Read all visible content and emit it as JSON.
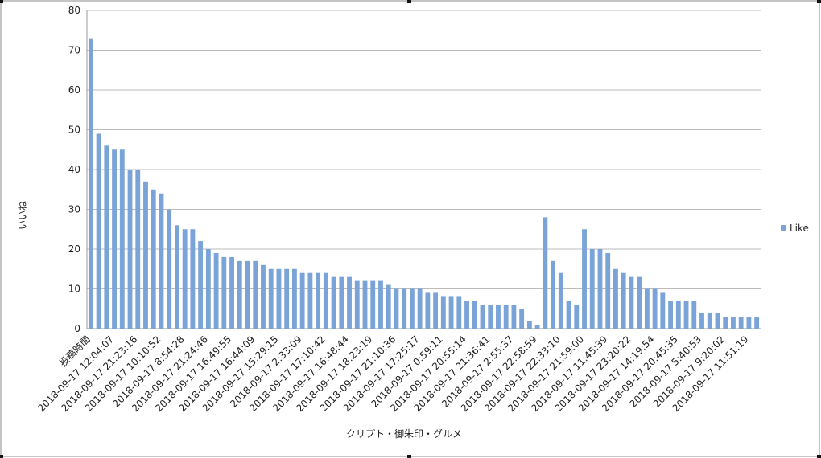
{
  "chart_data": {
    "type": "bar",
    "y_label": "いいね",
    "x_label": "クリプト・御朱印・グルメ",
    "categories": [
      "投稿時間",
      null,
      null,
      "2018-09-17 12:04:07",
      null,
      null,
      "2018-09-17 21:23:16",
      null,
      null,
      "2018-09-17 10:10:52",
      null,
      null,
      "2018-09-17 8:54:28",
      null,
      null,
      "2018-09-17 21:24:46",
      null,
      null,
      "2018-09-17 16:49:55",
      null,
      null,
      "2018-09-17 16:44:09",
      null,
      null,
      "2018-09-17 15:29:15",
      null,
      null,
      "2018-09-17 2:33:09",
      null,
      null,
      "2018-09-17 17:10:42",
      null,
      null,
      "2018-09-17 16:48:44",
      null,
      null,
      "2018-09-17 18:23:19",
      null,
      null,
      "2018-09-17 21:10:36",
      null,
      null,
      "2018-09-17 17:25:17",
      null,
      null,
      "2018-09-17 0:59:11",
      null,
      null,
      "2018-09-17 20:55:14",
      null,
      null,
      "2018-09-17 21:36:41",
      null,
      null,
      "2018-09-17 2:55:37",
      null,
      null,
      "2018-09-17 22:58:59",
      null,
      null,
      "2018-09-17 22:33:10",
      null,
      null,
      "2018-09-17 21:59:00",
      null,
      null,
      "2018-09-17 11:45:39",
      null,
      null,
      "2018-09-17 23:20:22",
      null,
      null,
      "2018-09-17 14:19:54",
      null,
      null,
      "2018-09-17 20:45:35",
      null,
      null,
      "2018-09-17 5:40:53",
      null,
      null,
      "2018-09-17 9:20:02",
      null,
      null,
      "2018-09-17 11:51:19",
      null
    ],
    "series": [
      {
        "name": "Like",
        "color": "#7aa3d8",
        "values": [
          73,
          49,
          46,
          45,
          45,
          40,
          40,
          37,
          35,
          34,
          30,
          26,
          25,
          25,
          22,
          20,
          19,
          18,
          18,
          17,
          17,
          17,
          16,
          15,
          15,
          15,
          15,
          14,
          14,
          14,
          14,
          13,
          13,
          13,
          12,
          12,
          12,
          12,
          11,
          10,
          10,
          10,
          10,
          9,
          9,
          8,
          8,
          8,
          7,
          7,
          6,
          6,
          6,
          6,
          6,
          5,
          2,
          1,
          28,
          17,
          14,
          7,
          6,
          25,
          20,
          20,
          19,
          15,
          14,
          13,
          13,
          10,
          10,
          9,
          7,
          7,
          7,
          7,
          4,
          4,
          4,
          3,
          3,
          3,
          3,
          3
        ]
      }
    ],
    "ylim": [
      0,
      80
    ],
    "yticks": [
      0,
      10,
      20,
      30,
      40,
      50,
      60,
      70,
      80
    ],
    "grid": true,
    "legend": "right"
  }
}
